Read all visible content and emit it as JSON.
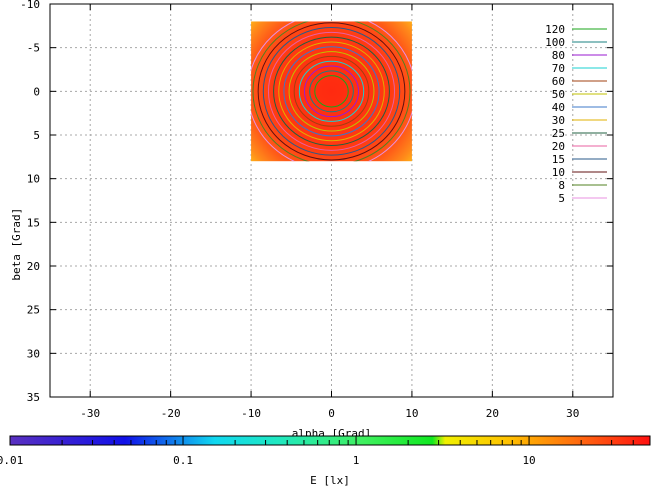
{
  "chart_data": {
    "type": "heatmap",
    "title": "",
    "xlabel": "alpha [Grad]",
    "ylabel": "beta [Grad]",
    "xlim": [
      -35,
      35
    ],
    "ylim": [
      -10,
      35
    ],
    "y_axis_inverted": true,
    "grid": true,
    "x_ticks": [
      "-30",
      "-20",
      "-10",
      "0",
      "10",
      "20",
      "30"
    ],
    "y_ticks": [
      "-10",
      "-5",
      "0",
      "5",
      "10",
      "15",
      "20",
      "25",
      "30",
      "35"
    ],
    "data_extent": {
      "alpha": [
        -10,
        10
      ],
      "beta": [
        -8,
        8
      ]
    },
    "contour_legend": {
      "placement": "top-right",
      "levels": [
        {
          "label": "120",
          "color": "#1aa51a"
        },
        {
          "label": "100",
          "color": "#1a8080"
        },
        {
          "label": "80",
          "color": "#9a1ad0"
        },
        {
          "label": "70",
          "color": "#1ad0d0"
        },
        {
          "label": "60",
          "color": "#a04010"
        },
        {
          "label": "50",
          "color": "#c0c000"
        },
        {
          "label": "40",
          "color": "#3c78c8"
        },
        {
          "label": "30",
          "color": "#e0b000"
        },
        {
          "label": "25",
          "color": "#206040"
        },
        {
          "label": "20",
          "color": "#e860a0"
        },
        {
          "label": "15",
          "color": "#2a5a8a"
        },
        {
          "label": "10",
          "color": "#601010"
        },
        {
          "label": "8",
          "color": "#508020"
        },
        {
          "label": "5",
          "color": "#e890e0"
        }
      ]
    },
    "colorbar": {
      "label": "E [lx]",
      "scale": "log",
      "range": [
        0.01,
        50
      ],
      "ticks": [
        "0.01",
        "0.1",
        "1",
        "10"
      ]
    }
  }
}
